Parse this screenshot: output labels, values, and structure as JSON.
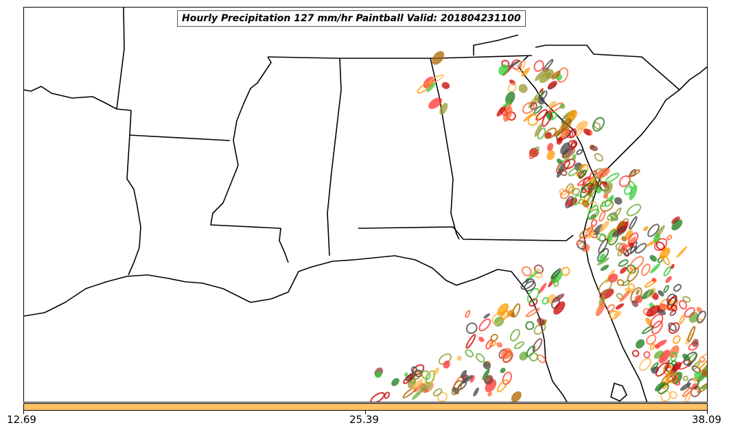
{
  "title": "Hourly Precipitation 127 mm/hr Paintball Valid: 201804231100",
  "colorbar": {
    "color": "#ffc266",
    "ticks": [
      "12.69",
      "25.39",
      "38.09"
    ]
  },
  "member_colors": [
    "#ff3333",
    "#cc0000",
    "#33cc33",
    "#1a7a1a",
    "#ff9900",
    "#ffb84d",
    "#8b3a3a",
    "#999933",
    "#444444",
    "#ff6633",
    "#66aa33",
    "#aa6600"
  ]
}
